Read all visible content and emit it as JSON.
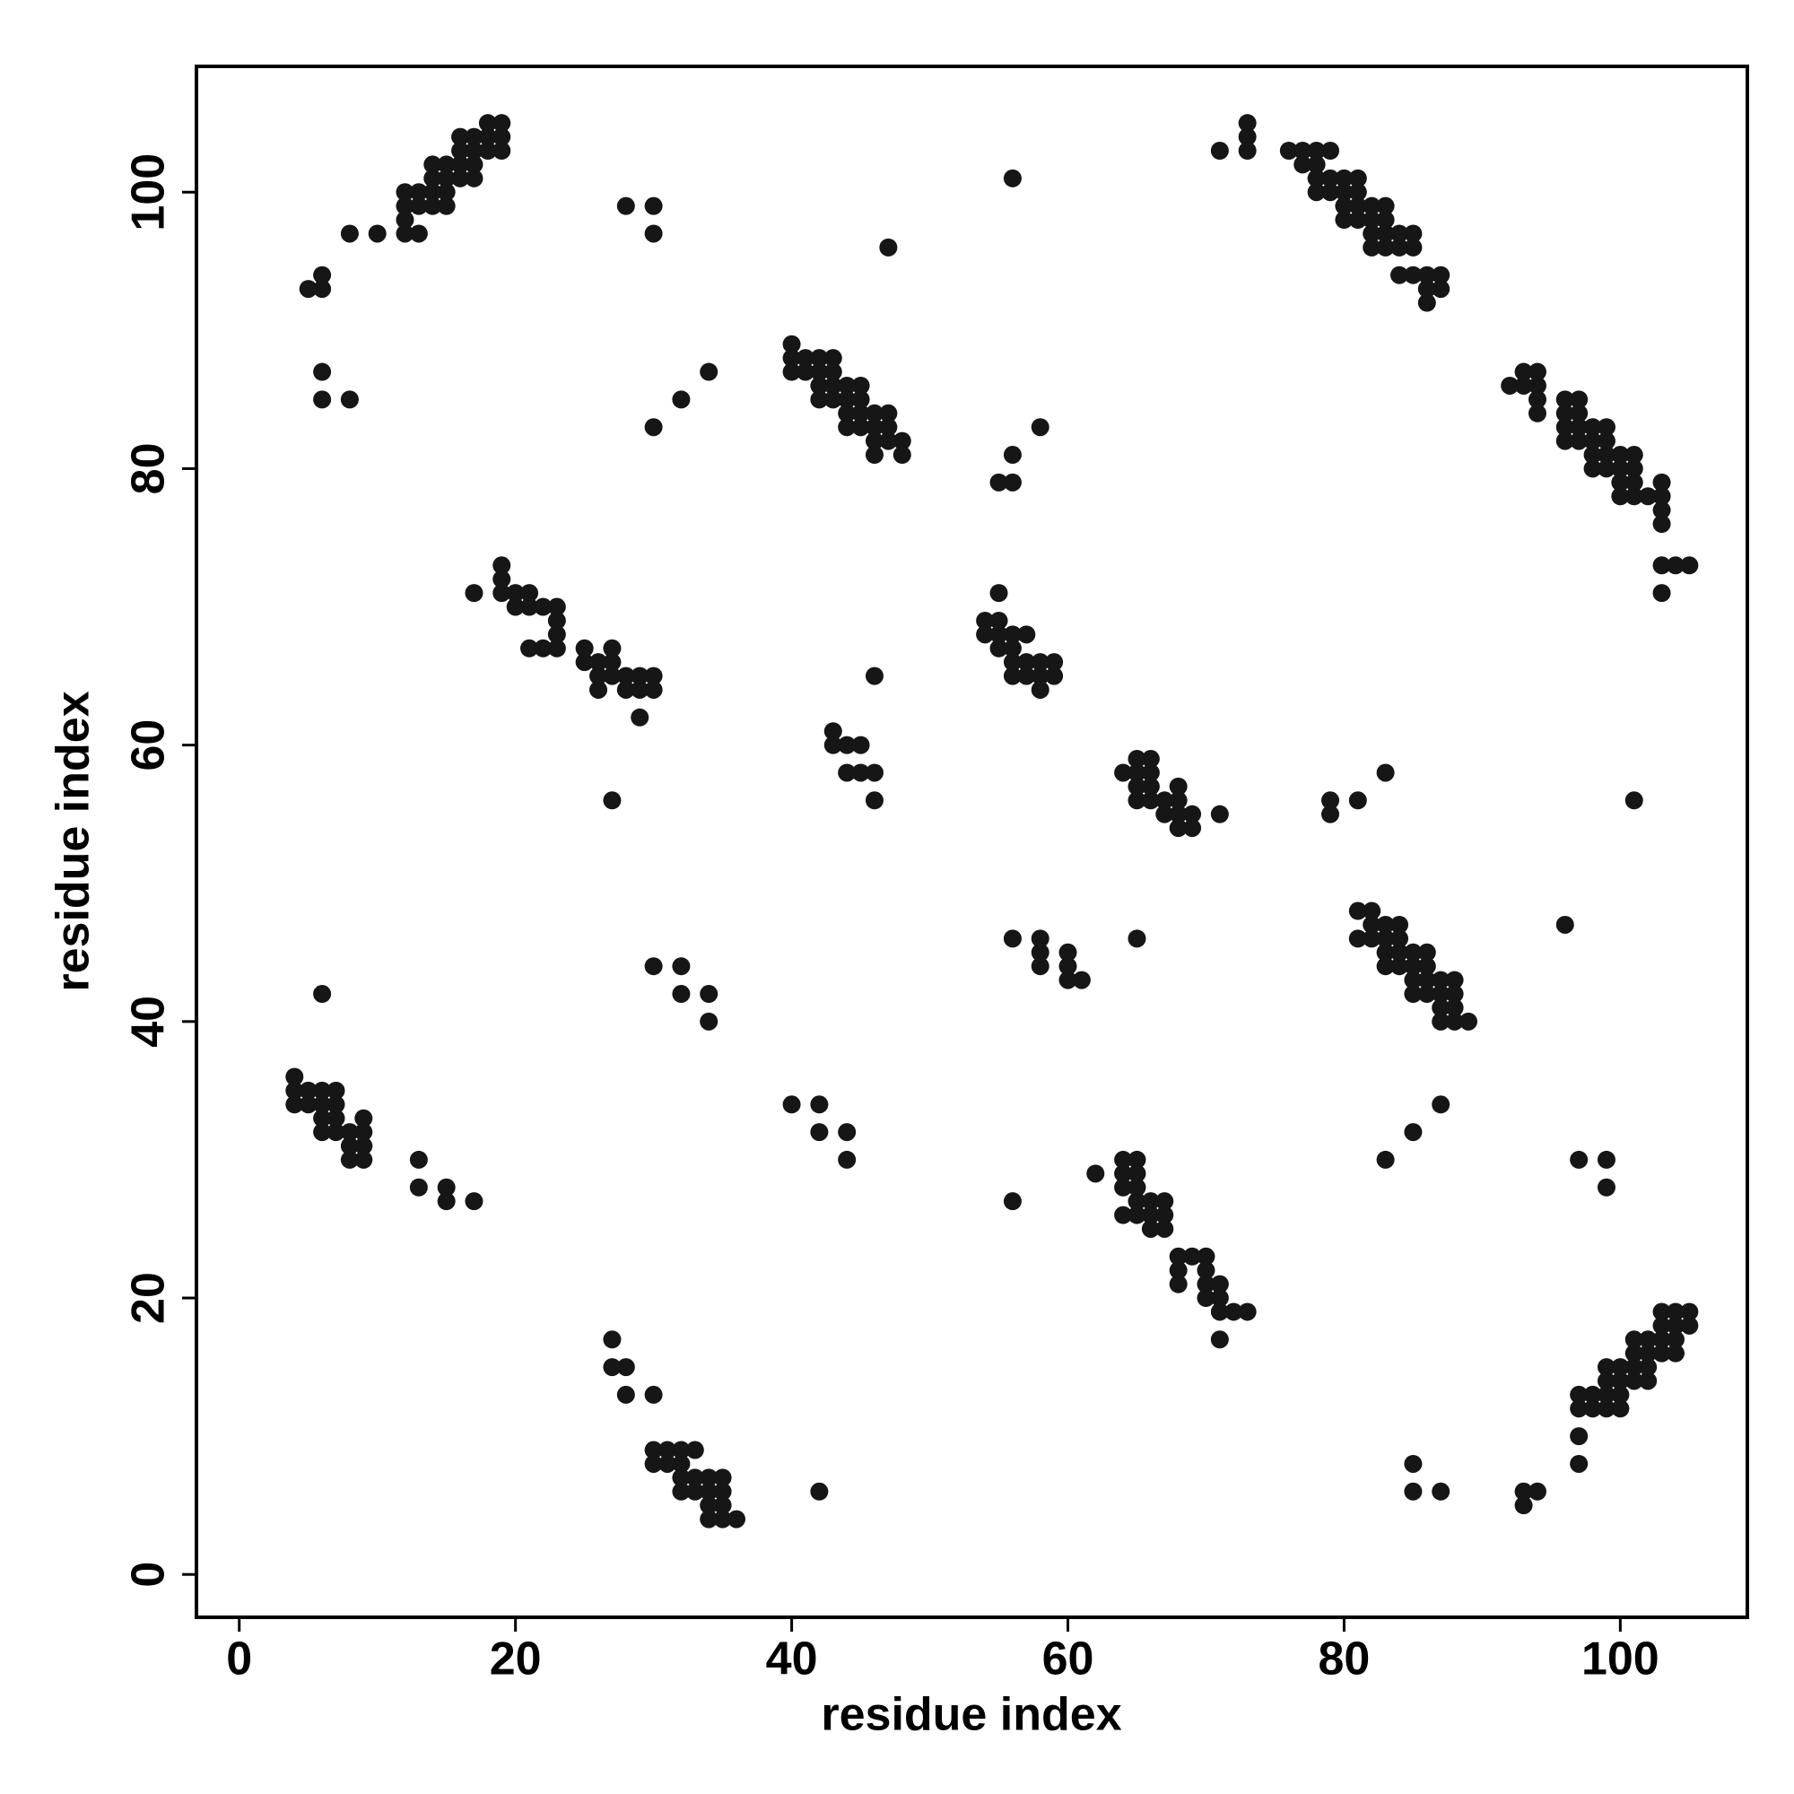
{
  "chart_data": {
    "type": "scatter",
    "xlabel": "residue index",
    "ylabel": "residue index",
    "color": "#161616",
    "xlim": [
      -3.1,
      109.2
    ],
    "ylim": [
      -3.1,
      109.1
    ],
    "xticks": [
      0,
      20,
      40,
      60,
      80,
      100
    ],
    "yticks": [
      0,
      20,
      40,
      60,
      80,
      100
    ],
    "x": [
      5,
      6,
      6,
      8,
      10,
      12,
      13,
      12,
      12,
      13,
      12,
      13,
      14,
      14,
      15,
      14,
      15,
      15,
      14,
      15,
      16,
      16,
      17,
      17,
      16,
      17,
      16,
      17,
      18,
      18,
      18,
      19,
      19,
      19,
      6,
      6,
      8,
      28,
      30,
      30,
      47,
      56,
      30,
      32,
      34,
      71,
      73,
      73,
      73,
      76,
      77,
      78,
      79,
      77,
      78,
      78,
      79,
      80,
      81,
      78,
      79,
      80,
      80,
      81,
      81,
      82,
      80,
      81,
      82,
      83,
      83,
      82,
      83,
      84,
      85,
      82,
      83,
      84,
      85,
      84,
      85,
      86,
      87,
      86,
      87,
      86,
      40,
      40,
      40,
      41,
      41,
      42,
      42,
      42,
      43,
      43,
      43,
      42,
      43,
      44,
      44,
      44,
      45,
      45,
      44,
      45,
      45,
      46,
      46,
      46,
      47,
      47,
      47,
      46,
      48,
      48,
      55,
      56,
      56,
      58,
      92,
      93,
      93,
      94,
      94,
      94,
      94,
      96,
      96,
      96,
      96,
      97,
      97,
      97,
      97,
      98,
      98,
      98,
      98,
      99,
      99,
      99,
      99,
      100,
      100,
      100,
      100,
      101,
      101,
      101,
      101,
      102,
      103,
      103,
      103,
      103,
      103,
      104,
      105,
      103,
      17,
      19,
      19,
      19,
      20,
      20,
      21,
      21,
      22,
      21,
      22,
      23,
      23,
      23,
      23,
      25,
      25,
      26,
      26,
      26,
      27,
      27,
      27,
      28,
      28,
      29,
      29,
      30,
      30,
      29,
      27,
      54,
      54,
      55,
      55,
      55,
      55,
      56,
      56,
      56,
      56,
      57,
      57,
      57,
      58,
      58,
      58,
      59,
      59,
      46,
      43,
      43,
      44,
      45,
      44,
      45,
      46,
      46,
      64,
      65,
      65,
      65,
      65,
      66,
      66,
      66,
      66,
      67,
      67,
      68,
      68,
      68,
      68,
      69,
      69,
      71,
      79,
      79,
      81,
      83,
      101,
      81,
      81,
      82,
      82,
      82,
      83,
      83,
      83,
      83,
      84,
      84,
      84,
      84,
      85,
      85,
      85,
      85,
      86,
      86,
      86,
      86,
      87,
      87,
      87,
      87,
      88,
      88,
      88,
      88,
      89,
      96,
      56,
      58,
      58,
      58,
      60,
      60,
      60,
      61,
      65,
      30,
      32,
      32,
      34,
      34,
      6,
      4,
      4,
      4,
      5,
      5,
      6,
      6,
      6,
      6,
      7,
      7,
      7,
      7,
      8,
      8,
      8,
      9,
      9,
      9,
      9,
      13,
      13,
      15,
      15,
      17,
      40,
      42,
      42,
      44,
      44,
      56,
      62,
      64,
      64,
      64,
      64,
      65,
      65,
      65,
      65,
      65,
      66,
      66,
      67,
      67,
      67,
      66,
      68,
      68,
      68,
      69,
      70,
      70,
      70,
      70,
      71,
      71,
      71,
      72,
      73,
      71,
      83,
      85,
      87,
      97,
      99,
      99,
      27,
      27,
      28,
      28,
      30,
      30,
      30,
      31,
      31,
      32,
      32,
      32,
      33,
      33,
      33,
      32,
      34,
      34,
      34,
      34,
      35,
      35,
      35,
      35,
      36,
      42,
      85,
      85,
      87,
      93,
      93,
      94,
      97,
      97,
      97,
      97,
      98,
      98,
      99,
      99,
      99,
      99,
      100,
      100,
      100,
      100,
      101,
      101,
      101,
      101,
      102,
      102,
      102,
      102,
      103,
      103,
      103,
      103,
      104,
      104,
      104,
      104,
      105,
      105
    ],
    "y": [
      93,
      93,
      94,
      97,
      97,
      97,
      97,
      98,
      99,
      99,
      100,
      100,
      100,
      99,
      99,
      101,
      101,
      100,
      102,
      102,
      102,
      101,
      101,
      102,
      103,
      103,
      104,
      104,
      103,
      104,
      105,
      105,
      104,
      103,
      87,
      85,
      85,
      99,
      99,
      97,
      96,
      101,
      83,
      85,
      87,
      103,
      103,
      104,
      105,
      103,
      103,
      103,
      103,
      102,
      102,
      101,
      101,
      101,
      101,
      100,
      100,
      100,
      99,
      99,
      100,
      99,
      98,
      98,
      98,
      98,
      99,
      97,
      97,
      97,
      97,
      96,
      96,
      96,
      96,
      94,
      94,
      94,
      94,
      93,
      93,
      92,
      89,
      88,
      87,
      88,
      87,
      88,
      87,
      86,
      88,
      87,
      86,
      85,
      85,
      86,
      85,
      84,
      86,
      85,
      83,
      83,
      84,
      84,
      83,
      82,
      84,
      83,
      82,
      81,
      82,
      81,
      79,
      79,
      81,
      83,
      86,
      87,
      86,
      87,
      86,
      85,
      84,
      85,
      84,
      83,
      82,
      85,
      84,
      83,
      82,
      83,
      82,
      81,
      80,
      83,
      82,
      81,
      80,
      81,
      80,
      79,
      78,
      81,
      80,
      79,
      78,
      78,
      79,
      78,
      77,
      76,
      73,
      73,
      73,
      71,
      71,
      73,
      72,
      71,
      71,
      70,
      71,
      70,
      70,
      67,
      67,
      70,
      69,
      68,
      67,
      67,
      66,
      66,
      65,
      64,
      67,
      66,
      65,
      65,
      64,
      65,
      64,
      65,
      64,
      62,
      56,
      69,
      68,
      71,
      69,
      68,
      67,
      68,
      67,
      66,
      65,
      68,
      66,
      65,
      66,
      65,
      64,
      66,
      65,
      65,
      61,
      60,
      60,
      60,
      58,
      58,
      58,
      56,
      58,
      59,
      58,
      57,
      56,
      59,
      58,
      57,
      56,
      56,
      55,
      57,
      56,
      55,
      54,
      55,
      54,
      55,
      56,
      55,
      56,
      58,
      56,
      48,
      46,
      48,
      47,
      46,
      47,
      46,
      45,
      44,
      47,
      46,
      45,
      44,
      45,
      44,
      43,
      42,
      45,
      44,
      43,
      42,
      43,
      42,
      41,
      40,
      43,
      42,
      41,
      40,
      40,
      47,
      46,
      46,
      45,
      44,
      45,
      44,
      43,
      43,
      46,
      44,
      44,
      42,
      42,
      40,
      42,
      36,
      35,
      34,
      35,
      34,
      35,
      34,
      33,
      32,
      35,
      34,
      33,
      32,
      32,
      31,
      30,
      33,
      32,
      31,
      30,
      30,
      28,
      28,
      27,
      27,
      34,
      34,
      32,
      32,
      30,
      27,
      29,
      30,
      29,
      28,
      26,
      30,
      29,
      28,
      27,
      26,
      27,
      26,
      27,
      26,
      25,
      25,
      23,
      22,
      21,
      23,
      23,
      22,
      21,
      20,
      21,
      20,
      19,
      19,
      19,
      17,
      30,
      32,
      34,
      30,
      30,
      28,
      17,
      15,
      15,
      13,
      13,
      9,
      8,
      9,
      8,
      9,
      8,
      7,
      9,
      7,
      6,
      6,
      7,
      6,
      5,
      4,
      7,
      6,
      5,
      4,
      4,
      6,
      8,
      6,
      6,
      6,
      5,
      6,
      13,
      12,
      10,
      8,
      13,
      12,
      15,
      14,
      13,
      12,
      15,
      14,
      13,
      12,
      17,
      16,
      15,
      14,
      17,
      16,
      15,
      14,
      19,
      18,
      17,
      16,
      19,
      18,
      17,
      16,
      19,
      18
    ]
  }
}
